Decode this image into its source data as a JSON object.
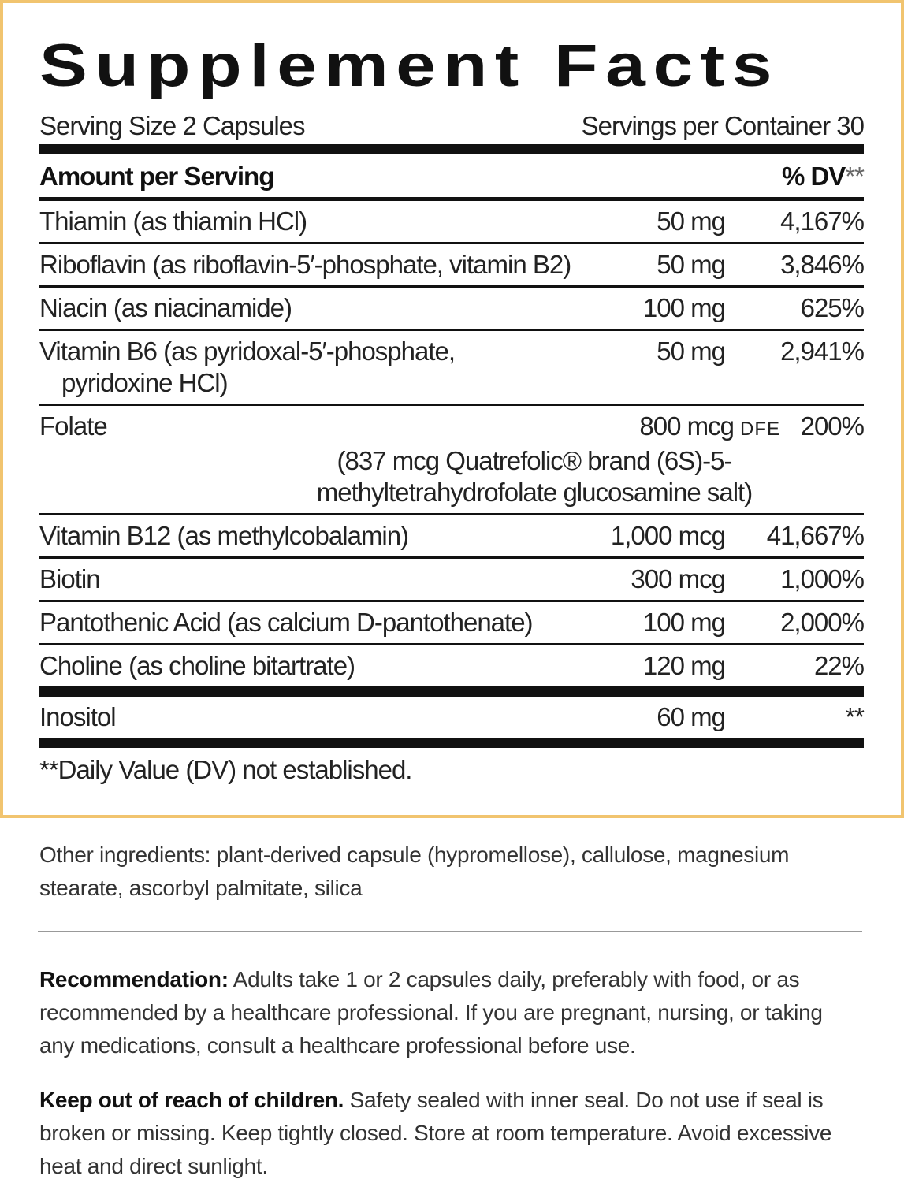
{
  "title": "Supplement Facts",
  "serving_size": "Serving Size 2 Capsules",
  "servings_per_container": "Servings per Container 30",
  "header": {
    "amount": "Amount per Serving",
    "dv": "% DV",
    "dv_mark": "**"
  },
  "rows": [
    {
      "name": "Thiamin (as thiamin HCl)",
      "amount": "50 mg",
      "dv": "4,167%"
    },
    {
      "name": "Riboflavin (as riboflavin-5′-phosphate, vitamin B2)",
      "amount": "50 mg",
      "dv": "3,846%"
    },
    {
      "name": "Niacin (as niacinamide)",
      "amount": "100 mg",
      "dv": "625%"
    },
    {
      "name": "Vitamin B6 (as pyridoxal-5′-phosphate, pyridoxine HCl)",
      "amount": "50 mg",
      "dv": "2,941%"
    },
    {
      "name": "Folate",
      "amount": "800 mcg",
      "amount_unit": "DFE",
      "dv": "200%",
      "note": "(837 mcg Quatrefolic® brand (6S)-5-methyltetrahydrofolate glucosamine salt)"
    },
    {
      "name": "Vitamin B12 (as methylcobalamin)",
      "amount": "1,000 mcg",
      "dv": "41,667%"
    },
    {
      "name": "Biotin",
      "amount": "300 mcg",
      "dv": "1,000%"
    },
    {
      "name": "Pantothenic Acid (as calcium D-pantothenate)",
      "amount": "100 mg",
      "dv": "2,000%"
    },
    {
      "name": "Choline (as choline bitartrate)",
      "amount": "120 mg",
      "dv": "22%"
    },
    {
      "name": "Inositol",
      "amount": "60 mg",
      "dv": "**"
    }
  ],
  "footnote": "**Daily Value (DV) not established.",
  "other_ingredients": "Other ingredients: plant-derived capsule (hypromellose), callulose, magnesium stearate, ascorbyl palmitate, silica",
  "recommendation": {
    "label": "Recommendation:",
    "text": "Adults take 1 or 2 capsules daily, preferably with food, or as recommended by a healthcare professional. If you are pregnant, nursing, or taking any medications, consult a healthcare professional before use."
  },
  "warning": {
    "label": "Keep out of reach of children.",
    "text": "Safety sealed with inner seal. Do not use if seal is broken or missing. Keep tightly closed. Store at room temperature. Avoid excessive heat and direct sunlight."
  }
}
